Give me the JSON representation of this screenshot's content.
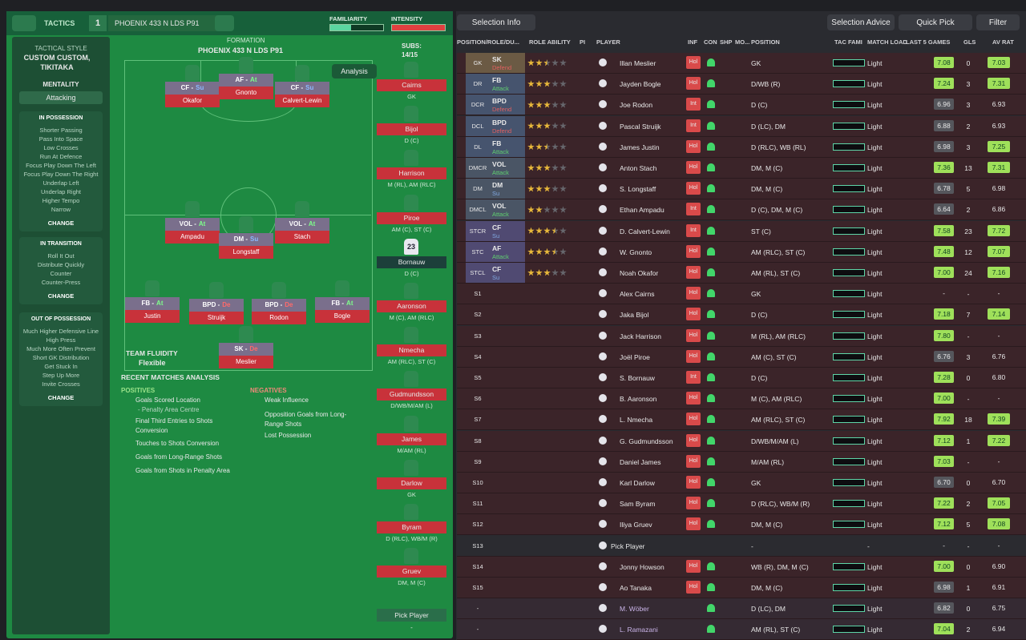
{
  "header": {
    "tactics_label": "TACTICS",
    "slot": "1",
    "tactic_name": "PHOENIX 433 N LDS P91",
    "familiarity": "FAMILIARITY",
    "intensity": "INTENSITY"
  },
  "left_panel": {
    "style_label": "TACTICAL STYLE",
    "style": "CUSTOM CUSTOM, TIKITAKA",
    "mentality_label": "MENTALITY",
    "mentality": "Attacking",
    "sections": [
      {
        "title": "IN POSSESSION",
        "items": [
          "Shorter Passing",
          "Pass Into Space",
          "Low Crosses",
          "Run At Defence",
          "Focus Play Down The Left",
          "Focus Play Down The Right",
          "Underlap Left",
          "Underlap Right",
          "Higher Tempo",
          "Narrow"
        ],
        "change": "CHANGE"
      },
      {
        "title": "IN TRANSITION",
        "items": [
          "Roll It Out",
          "Distribute Quickly",
          "Counter",
          "Counter-Press"
        ],
        "change": "CHANGE"
      },
      {
        "title": "OUT OF POSSESSION",
        "items": [
          "Much Higher Defensive Line",
          "High Press",
          "Much More Often Prevent Short GK Distribution",
          "Get Stuck In",
          "Step Up More",
          "Invite Crosses"
        ],
        "change": "CHANGE"
      }
    ]
  },
  "pitch": {
    "formation_label": "FORMATION",
    "formation": "PHOENIX 433 N LDS P91",
    "analysis": "Analysis",
    "fluidity_label": "TEAM FLUIDITY",
    "fluidity": "Flexible",
    "players": [
      {
        "role": "CF -",
        "duty": "Su",
        "name": "Okafor"
      },
      {
        "role": "AF -",
        "duty": "At",
        "name": "Gnonto"
      },
      {
        "role": "CF -",
        "duty": "Su",
        "name": "Calvert-Lewin"
      },
      {
        "role": "VOL -",
        "duty": "At",
        "name": "Ampadu"
      },
      {
        "role": "DM -",
        "duty": "Su",
        "name": "Longstaff"
      },
      {
        "role": "VOL -",
        "duty": "At",
        "name": "Stach"
      },
      {
        "role": "FB -",
        "duty": "At",
        "name": "Justin"
      },
      {
        "role": "BPD -",
        "duty": "De",
        "name": "Struijk"
      },
      {
        "role": "BPD -",
        "duty": "De",
        "name": "Rodon"
      },
      {
        "role": "FB -",
        "duty": "At",
        "name": "Bogle"
      },
      {
        "role": "SK -",
        "duty": "De",
        "name": "Meslier"
      }
    ]
  },
  "subs": {
    "label": "SUBS:",
    "count": "14/15",
    "players": [
      {
        "name": "Cairns",
        "pos": "GK"
      },
      {
        "name": "Bijol",
        "pos": "D (C)"
      },
      {
        "name": "Harrison",
        "pos": "M (RL), AM (RLC)"
      },
      {
        "name": "Piroe",
        "pos": "AM (C), ST (C)"
      },
      {
        "name": "Bornauw",
        "pos": "D (C)",
        "number": "23"
      },
      {
        "name": "Aaronson",
        "pos": "M (C), AM (RLC)"
      },
      {
        "name": "Nmecha",
        "pos": "AM (RLC), ST (C)"
      },
      {
        "name": "Gudmundsson",
        "pos": "D/WB/M/AM (L)"
      },
      {
        "name": "James",
        "pos": "M/AM (RL)"
      },
      {
        "name": "Darlow",
        "pos": "GK"
      },
      {
        "name": "Byram",
        "pos": "D (RLC), WB/M (R)"
      },
      {
        "name": "Gruev",
        "pos": "DM, M (C)"
      }
    ],
    "pick": "Pick Player",
    "last": "-"
  },
  "analysis": {
    "title": "RECENT MATCHES ANALYSIS",
    "positives_label": "POSITIVES",
    "positives": [
      "Goals Scored Location",
      "- Penalty Area Centre",
      "Final Third Entries to Shots Conversion",
      "Touches to Shots Conversion",
      "Goals from Long-Range Shots",
      "Goals from Shots in Penalty Area"
    ],
    "negatives_label": "NEGATIVES",
    "negatives": [
      "Weak Influence",
      "Opposition Goals from Long-Range Shots",
      "Lost Possession"
    ]
  },
  "toolbar": {
    "selection_info": "Selection Info",
    "selection_advice": "Selection Advice",
    "quick_pick": "Quick Pick",
    "filter": "Filter"
  },
  "table": {
    "columns": [
      "POSITION/ROLE/DU...",
      "ROLE ABILITY",
      "PI",
      "PLAYER",
      "INF",
      "CON",
      "SHP",
      "MO...",
      "POSITION",
      "TAC FAMI",
      "MATCH LOAD",
      "LAST 5 GAMES",
      "GLS",
      "AV RAT"
    ],
    "rows": [
      {
        "slot": "GK",
        "role": "SK",
        "duty": "Defend",
        "stars": 2.5,
        "player": "Illan Meslier",
        "inf": "Hol",
        "position": "GK",
        "load": "Light",
        "rating": "7.08",
        "gls": "0",
        "avrat": "7.03"
      },
      {
        "slot": "DR",
        "role": "FB",
        "duty": "Attack",
        "stars": 3,
        "player": "Jayden Bogle",
        "inf": "Hol",
        "position": "D/WB (R)",
        "load": "Light",
        "rating": "7.24",
        "gls": "3",
        "avrat": "7.31"
      },
      {
        "slot": "DCR",
        "role": "BPD",
        "duty": "Defend",
        "stars": 3,
        "player": "Joe Rodon",
        "inf": "Int",
        "position": "D (C)",
        "load": "Light",
        "rating": "6.96",
        "gls": "3",
        "avrat": "6.93"
      },
      {
        "slot": "DCL",
        "role": "BPD",
        "duty": "Defend",
        "stars": 3,
        "player": "Pascal Struijk",
        "inf": "Int",
        "position": "D (LC), DM",
        "load": "Light",
        "rating": "6.88",
        "gls": "2",
        "avrat": "6.93"
      },
      {
        "slot": "DL",
        "role": "FB",
        "duty": "Attack",
        "stars": 2.5,
        "player": "James Justin",
        "inf": "Hol",
        "position": "D (RLC), WB (RL)",
        "load": "Light",
        "rating": "6.98",
        "gls": "3",
        "avrat": "7.25"
      },
      {
        "slot": "DMCR",
        "role": "VOL",
        "duty": "Attack",
        "stars": 3,
        "player": "Anton Stach",
        "inf": "Hol",
        "position": "DM, M (C)",
        "load": "Light",
        "rating": "7.36",
        "gls": "13",
        "avrat": "7.31"
      },
      {
        "slot": "DM",
        "role": "DM",
        "duty": "Su",
        "stars": 3,
        "player": "S. Longstaff",
        "inf": "Hol",
        "position": "DM, M (C)",
        "load": "Light",
        "rating": "6.78",
        "gls": "5",
        "avrat": "6.98"
      },
      {
        "slot": "DMCL",
        "role": "VOL",
        "duty": "Attack",
        "stars": 2,
        "player": "Ethan Ampadu",
        "inf": "Int",
        "position": "D (C), DM, M (C)",
        "load": "Light",
        "rating": "6.64",
        "gls": "2",
        "avrat": "6.86"
      },
      {
        "slot": "STCR",
        "role": "CF",
        "duty": "Su",
        "stars": 3.5,
        "player": "D. Calvert-Lewin",
        "inf": "Int",
        "position": "ST (C)",
        "load": "Light",
        "rating": "7.58",
        "gls": "23",
        "avrat": "7.72"
      },
      {
        "slot": "STC",
        "role": "AF",
        "duty": "Attack",
        "stars": 3.5,
        "player": "W. Gnonto",
        "inf": "Hol",
        "position": "AM (RLC), ST (C)",
        "load": "Light",
        "rating": "7.48",
        "gls": "12",
        "avrat": "7.07"
      },
      {
        "slot": "STCL",
        "role": "CF",
        "duty": "Su",
        "stars": 3,
        "player": "Noah Okafor",
        "inf": "Hol",
        "position": "AM (RL), ST (C)",
        "load": "Light",
        "rating": "7.00",
        "gls": "24",
        "avrat": "7.16"
      },
      {
        "slot": "S1",
        "player": "Alex Cairns",
        "inf": "Hol",
        "position": "GK",
        "load": "Light",
        "rating": "-",
        "gls": "-",
        "avrat": "-"
      },
      {
        "slot": "S2",
        "player": "Jaka Bijol",
        "inf": "Hol",
        "position": "D (C)",
        "load": "Light",
        "rating": "7.18",
        "gls": "7",
        "avrat": "7.14"
      },
      {
        "slot": "S3",
        "player": "Jack Harrison",
        "inf": "Hol",
        "position": "M (RL), AM (RLC)",
        "load": "Light",
        "rating": "7.80",
        "gls": "-",
        "avrat": "-"
      },
      {
        "slot": "S4",
        "player": "Joël Piroe",
        "inf": "Hol",
        "position": "AM (C), ST (C)",
        "load": "Light",
        "rating": "6.76",
        "gls": "3",
        "avrat": "6.76"
      },
      {
        "slot": "S5",
        "player": "S. Bornauw",
        "inf": "Int",
        "position": "D (C)",
        "load": "Light",
        "rating": "7.28",
        "gls": "0",
        "avrat": "6.80"
      },
      {
        "slot": "S6",
        "player": "B. Aaronson",
        "inf": "Hol",
        "position": "M (C), AM (RLC)",
        "load": "Light",
        "rating": "7.00",
        "gls": "-",
        "avrat": "-"
      },
      {
        "slot": "S7",
        "player": "L. Nmecha",
        "inf": "Hol",
        "position": "AM (RLC), ST (C)",
        "load": "Light",
        "rating": "7.92",
        "gls": "18",
        "avrat": "7.39"
      },
      {
        "slot": "S8",
        "player": "G. Gudmundsson",
        "inf": "Hol",
        "position": "D/WB/M/AM (L)",
        "load": "Light",
        "rating": "7.12",
        "gls": "1",
        "avrat": "7.22"
      },
      {
        "slot": "S9",
        "player": "Daniel James",
        "inf": "Hol",
        "position": "M/AM (RL)",
        "load": "Light",
        "rating": "7.03",
        "gls": "-",
        "avrat": "-"
      },
      {
        "slot": "S10",
        "player": "Karl Darlow",
        "inf": "Hol",
        "position": "GK",
        "load": "Light",
        "rating": "6.70",
        "gls": "0",
        "avrat": "6.70"
      },
      {
        "slot": "S11",
        "player": "Sam Byram",
        "inf": "Hol",
        "position": "D (RLC), WB/M (R)",
        "load": "Light",
        "rating": "7.22",
        "gls": "2",
        "avrat": "7.05"
      },
      {
        "slot": "S12",
        "player": "Iliya Gruev",
        "inf": "Hol",
        "position": "DM, M (C)",
        "load": "Light",
        "rating": "7.12",
        "gls": "5",
        "avrat": "7.08"
      },
      {
        "slot": "S13",
        "player": "Pick Player",
        "position": "-",
        "load": "-",
        "rating": "-",
        "gls": "-",
        "avrat": "-"
      },
      {
        "slot": "S14",
        "player": "Jonny Howson",
        "inf": "Hol",
        "position": "WB (R), DM, M (C)",
        "load": "Light",
        "rating": "7.00",
        "gls": "0",
        "avrat": "6.90"
      },
      {
        "slot": "S15",
        "player": "Ao Tanaka",
        "inf": "Hol",
        "position": "DM, M (C)",
        "load": "Light",
        "rating": "6.98",
        "gls": "1",
        "avrat": "6.91"
      },
      {
        "slot": "-",
        "player": "M. Wöber",
        "position": "D (LC), DM",
        "load": "Light",
        "rating": "6.82",
        "gls": "0",
        "avrat": "6.75"
      },
      {
        "slot": "-",
        "player": "L. Ramazani",
        "position": "AM (RL), ST (C)",
        "load": "Light",
        "rating": "7.04",
        "gls": "2",
        "avrat": "6.94"
      }
    ]
  }
}
